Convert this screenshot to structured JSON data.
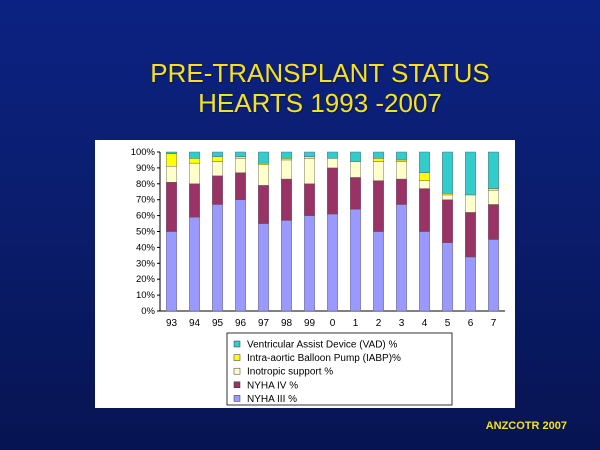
{
  "slide": {
    "title_line1": "PRE-TRANSPLANT STATUS",
    "title_line2": "HEARTS  1993 -2007",
    "footer": "ANZCOTR 2007"
  },
  "colors": {
    "background": "#0a1d6e",
    "title": "#f5e11c",
    "NYHA III %": "#9999ff",
    "NYHA IV %": "#993366",
    "Inotropic support %": "#ffffcc",
    "Intra-aortic Balloon Pump (IABP)%": "#ffff00",
    "Ventricular Assist Device (VAD) %": "#33cccc"
  },
  "chart_data": {
    "type": "bar",
    "stacked": true,
    "categories": [
      "93",
      "94",
      "95",
      "96",
      "97",
      "98",
      "99",
      "0",
      "1",
      "2",
      "3",
      "4",
      "5",
      "6",
      "7"
    ],
    "ylim": [
      0,
      100
    ],
    "y_ticks": [
      "0%",
      "10%",
      "20%",
      "30%",
      "40%",
      "50%",
      "60%",
      "70%",
      "80%",
      "90%",
      "100%"
    ],
    "grid": false,
    "legend_position": "bottom",
    "series": [
      {
        "name": "NYHA III %",
        "values": [
          50,
          59,
          67,
          70,
          55,
          57,
          60,
          61,
          64,
          50,
          67,
          50,
          43,
          34,
          45
        ]
      },
      {
        "name": "NYHA IV %",
        "values": [
          31,
          21,
          18,
          17,
          24,
          26,
          20,
          29,
          20,
          32,
          16,
          27,
          27,
          28,
          22
        ]
      },
      {
        "name": "Inotropic support %",
        "values": [
          10,
          13,
          9,
          9,
          13,
          12,
          16,
          6,
          10,
          12,
          11,
          5,
          3,
          11,
          9
        ]
      },
      {
        "name": "Intra-aortic Balloon Pump (IABP)%",
        "values": [
          8,
          3,
          3,
          1,
          1,
          1,
          1,
          0,
          0,
          2,
          1,
          5,
          1,
          0,
          1
        ]
      },
      {
        "name": "Ventricular Assist Device (VAD) %",
        "values": [
          1,
          4,
          3,
          3,
          7,
          4,
          3,
          4,
          6,
          4,
          5,
          13,
          26,
          27,
          23
        ]
      }
    ],
    "legend": [
      "Ventricular Assist Device (VAD) %",
      "Intra-aortic Balloon Pump (IABP)%",
      "Inotropic support %",
      "NYHA IV %",
      "NYHA III %"
    ]
  }
}
